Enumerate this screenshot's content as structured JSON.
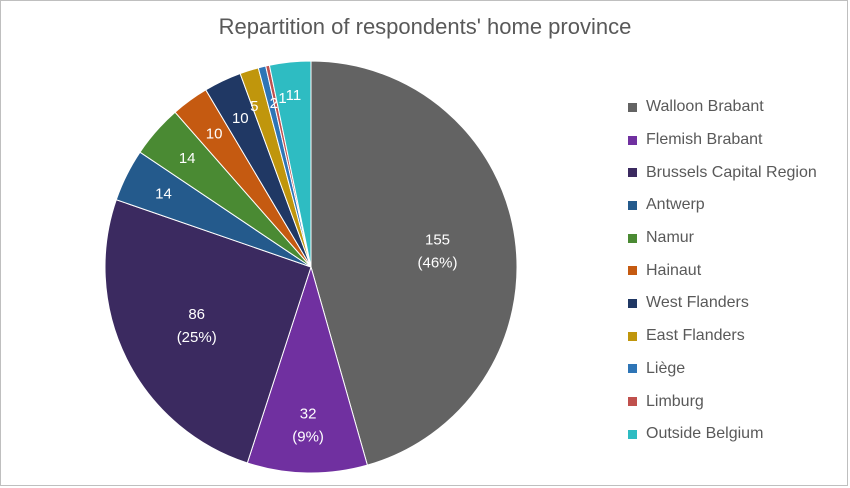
{
  "chart_data": {
    "type": "pie",
    "title": "Repartition of respondents' home province",
    "legend_position": "right",
    "slices": [
      {
        "name": "Walloon Brabant",
        "value": 155,
        "label": "155",
        "percent_label": "(46%)",
        "color": "#636363"
      },
      {
        "name": "Flemish Brabant",
        "value": 32,
        "label": "32",
        "percent_label": "(9%)",
        "color": "#7030a0"
      },
      {
        "name": "Brussels Capital Region",
        "value": 86,
        "label": "86",
        "percent_label": "(25%)",
        "color": "#3b2a60"
      },
      {
        "name": "Antwerp",
        "value": 14,
        "label": "14",
        "percent_label": "",
        "color": "#245a8c"
      },
      {
        "name": "Namur",
        "value": 14,
        "label": "14",
        "percent_label": "",
        "color": "#4a8a33"
      },
      {
        "name": "Hainaut",
        "value": 10,
        "label": "10",
        "percent_label": "",
        "color": "#c55a11"
      },
      {
        "name": "West Flanders",
        "value": 10,
        "label": "10",
        "percent_label": "",
        "color": "#203864"
      },
      {
        "name": "East Flanders",
        "value": 5,
        "label": "5",
        "percent_label": "",
        "color": "#c0960c"
      },
      {
        "name": "Liège",
        "value": 2,
        "label": "2",
        "percent_label": "",
        "color": "#2e75b6"
      },
      {
        "name": "Limburg",
        "value": 1,
        "label": "1",
        "percent_label": "",
        "color": "#c0504d"
      },
      {
        "name": "Outside Belgium",
        "value": 11,
        "label": "11",
        "percent_label": "",
        "color": "#2ebcc2"
      }
    ]
  }
}
